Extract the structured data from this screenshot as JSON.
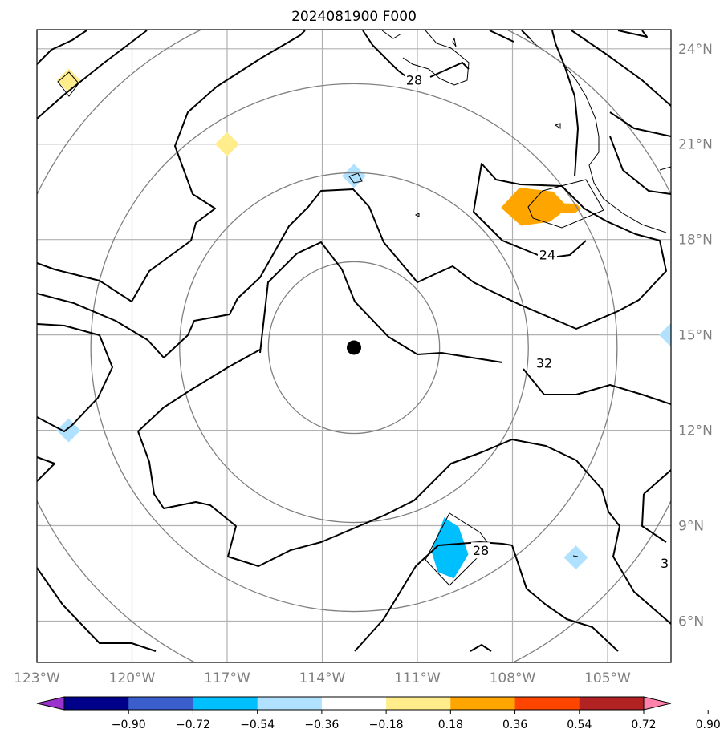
{
  "chart_data": {
    "type": "map",
    "title": "2024081900 F000",
    "lon_ticks": [
      -123,
      -120,
      -117,
      -114,
      -111,
      -108,
      -105
    ],
    "lon_labels": [
      "123°W",
      "120°W",
      "117°W",
      "114°W",
      "111°W",
      "108°W",
      "105°W"
    ],
    "lat_ticks": [
      6,
      9,
      12,
      15,
      18,
      21,
      24
    ],
    "lat_labels": [
      "6°N",
      "9°N",
      "12°N",
      "15°N",
      "18°N",
      "21°N",
      "24°N"
    ],
    "xlim": [
      -123,
      -103
    ],
    "ylim": [
      4.7,
      24.6
    ],
    "grid": true,
    "center_marker": {
      "lon": -113,
      "lat": 14.6
    },
    "range_rings_deg": [
      2.7,
      5.5,
      8.3,
      11.1
    ],
    "contour_labels": [
      {
        "text": "28",
        "lon": -111.1,
        "lat": 23.0
      },
      {
        "text": "24",
        "lon": -106.9,
        "lat": 17.5
      },
      {
        "text": "32",
        "lon": -107.0,
        "lat": 14.1
      },
      {
        "text": "28",
        "lon": -109.0,
        "lat": 8.2
      },
      {
        "text": "3",
        "lon": -103.2,
        "lat": 7.8
      }
    ],
    "shaded_features": [
      {
        "lon": -122.0,
        "lat": 23.0,
        "value": 0.27
      },
      {
        "lon": -117.0,
        "lat": 21.0,
        "value": 0.27
      },
      {
        "lon": -113.0,
        "lat": 20.0,
        "value": -0.27
      },
      {
        "lon": -107.3,
        "lat": 19.0,
        "value": 0.45
      },
      {
        "lon": -103.0,
        "lat": 15.0,
        "value": -0.27
      },
      {
        "lon": -122.0,
        "lat": 12.0,
        "value": -0.27
      },
      {
        "lon": -110.0,
        "lat": 8.2,
        "value": -0.45
      },
      {
        "lon": -106.0,
        "lat": 8.0,
        "value": -0.27
      }
    ],
    "colorbar": {
      "ticks": [
        "−0.90",
        "−0.72",
        "−0.54",
        "−0.36",
        "−0.18",
        "0.18",
        "0.36",
        "0.54",
        "0.72",
        "0.90"
      ],
      "colors": [
        "#9932cc",
        "#00008b",
        "#3a5fcd",
        "#00bfff",
        "#b0e2ff",
        "#ffffff",
        "#ffec8b",
        "#ffa500",
        "#ff4500",
        "#b22222",
        "#ff82ab"
      ],
      "extend": "both"
    }
  }
}
